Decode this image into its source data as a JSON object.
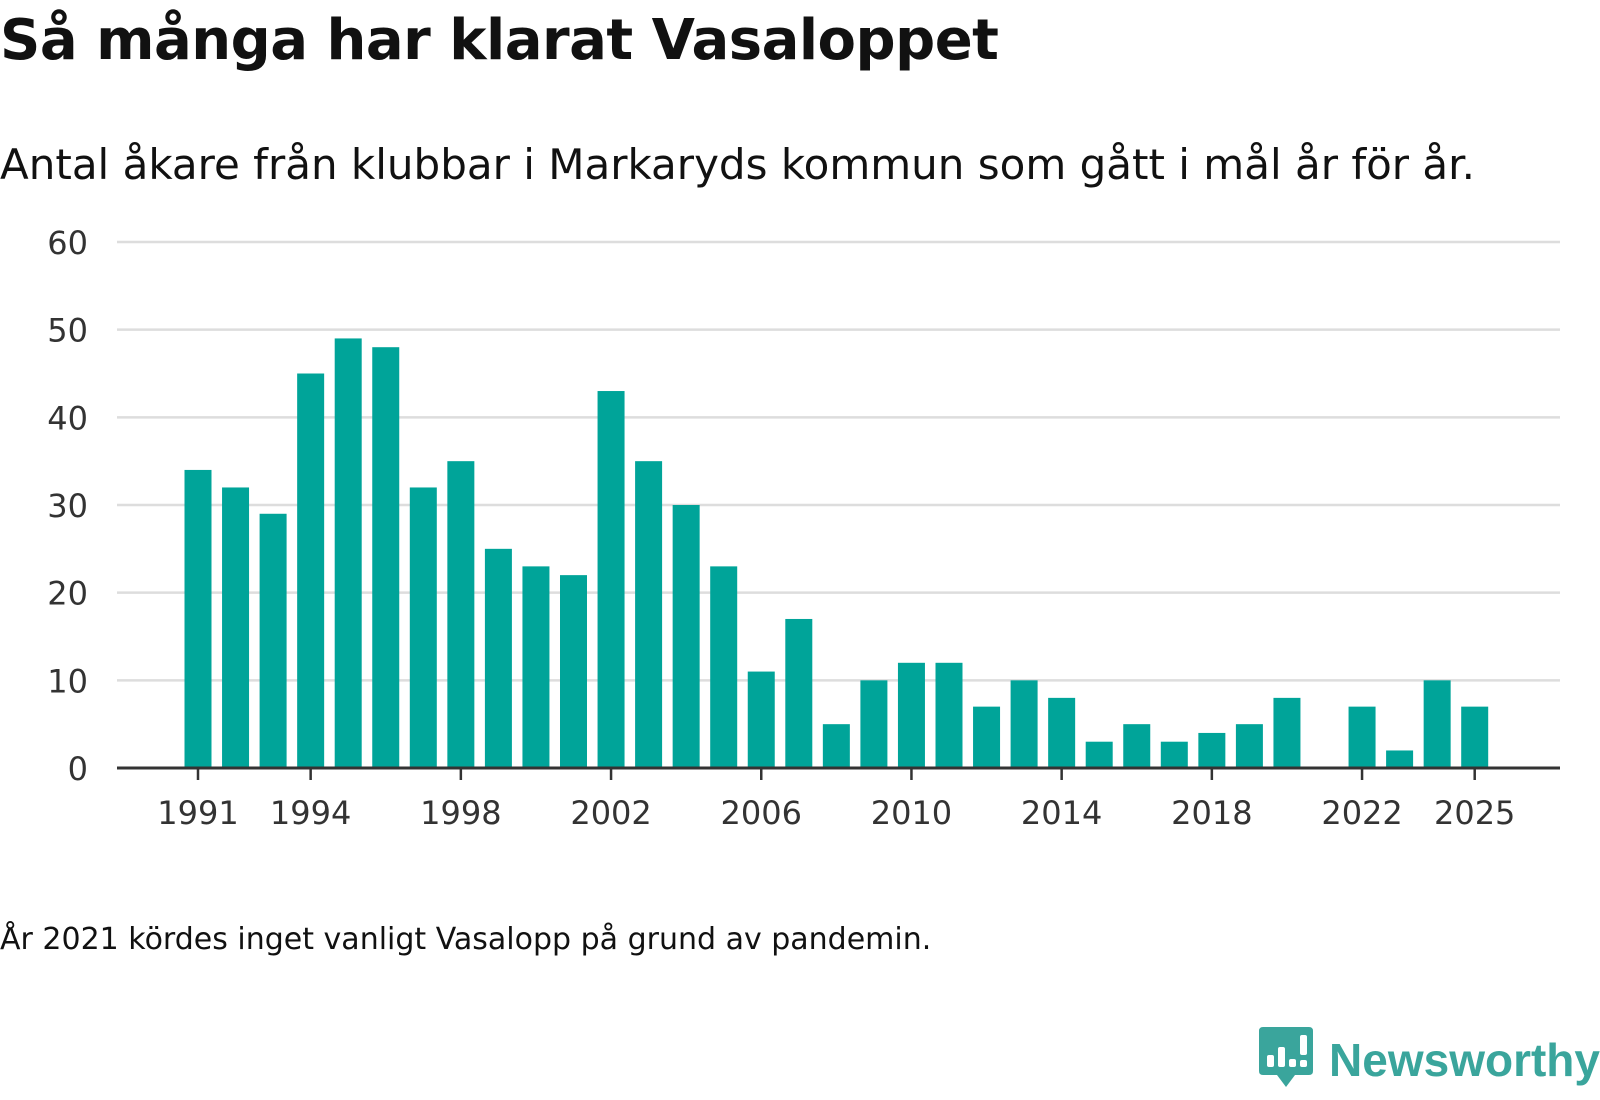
{
  "header": {
    "title": "Så många har klarat Vasaloppet",
    "subtitle": "Antal åkare från klubbar i Markaryds kommun som gått i mål år för år."
  },
  "footnote": "År 2021 kördes inget vanligt Vasalopp på grund av pandemin.",
  "brand": {
    "name": "Newsworthy",
    "logo_icon": "newsworthy-bar-chart-icon",
    "color": "#3aa59c"
  },
  "colors": {
    "bar": "#00a499",
    "grid": "#dddddd",
    "axis": "#333333",
    "tick_text": "#333333"
  },
  "chart_data": {
    "type": "bar",
    "title": "Så många har klarat Vasaloppet",
    "xlabel": "",
    "ylabel": "",
    "ylim": [
      0,
      60
    ],
    "yticks": [
      0,
      10,
      20,
      30,
      40,
      50,
      60
    ],
    "xticks": [
      1991,
      1994,
      1998,
      2002,
      2006,
      2010,
      2014,
      2018,
      2022,
      2025
    ],
    "grid": true,
    "legend": "none",
    "categories": [
      1991,
      1992,
      1993,
      1994,
      1995,
      1996,
      1997,
      1998,
      1999,
      2000,
      2001,
      2002,
      2003,
      2004,
      2005,
      2006,
      2007,
      2008,
      2009,
      2010,
      2011,
      2012,
      2013,
      2014,
      2015,
      2016,
      2017,
      2018,
      2019,
      2020,
      2021,
      2022,
      2023,
      2024,
      2025
    ],
    "values": [
      34,
      32,
      29,
      45,
      49,
      48,
      32,
      35,
      25,
      23,
      22,
      43,
      35,
      30,
      23,
      11,
      17,
      5,
      10,
      12,
      12,
      7,
      10,
      8,
      3,
      5,
      3,
      4,
      5,
      8,
      null,
      7,
      2,
      10,
      7
    ]
  }
}
